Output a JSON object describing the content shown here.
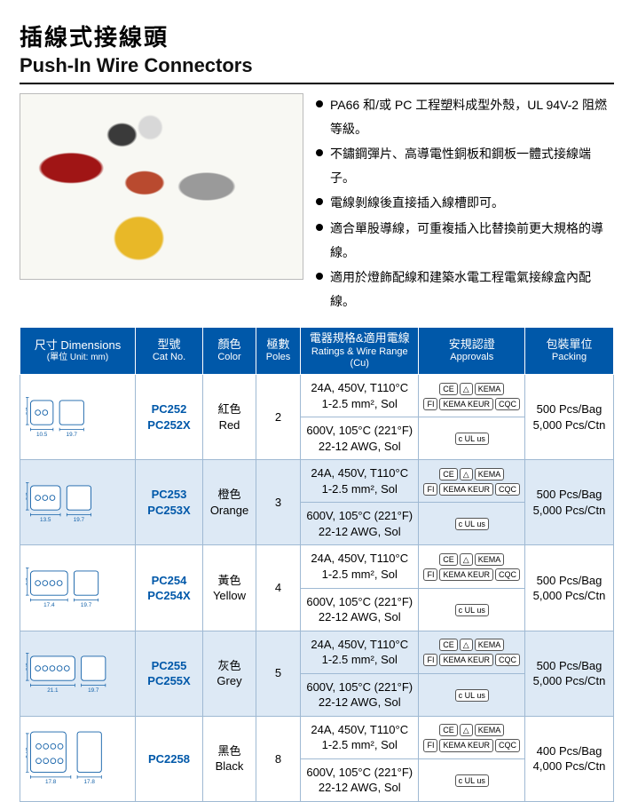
{
  "title_zh": "插線式接線頭",
  "title_en": "Push-In Wire Connectors",
  "bullets": [
    "PA66 和/或 PC 工程塑料成型外殼，UL 94V-2 阻燃等級。",
    "不鏽鋼彈片、高導電性銅板和鋼板一體式接線端子。",
    "電線剝線後直接插入線槽即可。",
    "適合單股導線，可重複插入比替換前更大規格的導線。",
    "適用於燈飾配線和建築水電工程電氣接線盒內配線。"
  ],
  "columns": {
    "dim": {
      "zh": "尺寸 Dimensions",
      "note": "(單位 Unit: mm)"
    },
    "cat": {
      "zh": "型號",
      "en": "Cat No."
    },
    "color": {
      "zh": "顏色",
      "en": "Color"
    },
    "poles": {
      "zh": "極數",
      "en": "Poles"
    },
    "rating": {
      "zh": "電器規格&適用電線",
      "en": "Ratings & Wire Range (Cu)"
    },
    "appr": {
      "zh": "安規認證",
      "en": "Approvals"
    },
    "pack": {
      "zh": "包裝單位",
      "en": "Packing"
    }
  },
  "rating_a": {
    "l1": "24A, 450V, T110°C",
    "l2": "1-2.5 mm², Sol"
  },
  "rating_b": {
    "l1": "600V, 105°C (221°F)",
    "l2": "22-12 AWG, Sol"
  },
  "appr_a": [
    "CE",
    "△",
    "KEMA",
    "FI",
    "KEMA KEUR",
    "CQC"
  ],
  "appr_b": [
    "c UL us"
  ],
  "rows": [
    {
      "alt": false,
      "cat": [
        "PC252",
        "PC252X"
      ],
      "color_zh": "紅色",
      "color_en": "Red",
      "poles": "2",
      "pack": [
        "500 Pcs/Bag",
        "5,000 Pcs/Ctn"
      ],
      "dims": {
        "w": "10.5",
        "d": "19.7",
        "h": "9.5",
        "holes": 2
      }
    },
    {
      "alt": true,
      "cat": [
        "PC253",
        "PC253X"
      ],
      "color_zh": "橙色",
      "color_en": "Orange",
      "poles": "3",
      "pack": [
        "500 Pcs/Bag",
        "5,000 Pcs/Ctn"
      ],
      "dims": {
        "w": "13.5",
        "d": "19.7",
        "h": "9.5",
        "holes": 3
      }
    },
    {
      "alt": false,
      "cat": [
        "PC254",
        "PC254X"
      ],
      "color_zh": "黃色",
      "color_en": "Yellow",
      "poles": "4",
      "pack": [
        "500 Pcs/Bag",
        "5,000 Pcs/Ctn"
      ],
      "dims": {
        "w": "17.4",
        "d": "19.7",
        "h": "9.5",
        "holes": 4
      }
    },
    {
      "alt": true,
      "cat": [
        "PC255",
        "PC255X"
      ],
      "color_zh": "灰色",
      "color_en": "Grey",
      "poles": "5",
      "pack": [
        "500 Pcs/Bag",
        "5,000 Pcs/Ctn"
      ],
      "dims": {
        "w": "21.1",
        "d": "19.7",
        "h": "9.5",
        "holes": 5
      }
    },
    {
      "alt": false,
      "cat": [
        "PC2258"
      ],
      "color_zh": "黑色",
      "color_en": "Black",
      "poles": "8",
      "pack": [
        "400 Pcs/Bag",
        "4,000 Pcs/Ctn"
      ],
      "dims": {
        "w": "17.8",
        "d": "17.8",
        "h": "14.5",
        "holes": 8
      }
    }
  ],
  "colors": {
    "header_bg": "#0058a9",
    "alt_bg": "#dde9f5",
    "border": "#9fb9d3",
    "cat_text": "#0058a9"
  }
}
